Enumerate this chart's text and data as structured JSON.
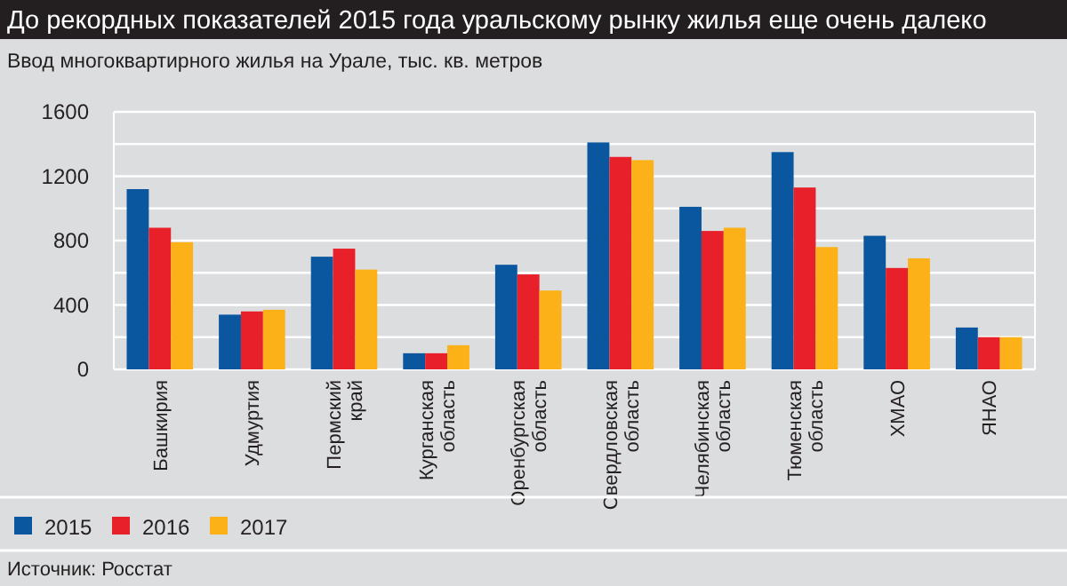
{
  "chart_data": {
    "type": "bar",
    "title": "До рекордных показателей 2015 года уральскому рынку жилья еще очень далеко",
    "subtitle": "Ввод многоквартирного жилья на Урале, тыс. кв. метров",
    "categories": [
      "Башкирия",
      "Удмуртия",
      "Пермский край",
      "Курганская область",
      "Оренбургская область",
      "Свердловская область",
      "Челябинская область",
      "Тюменская область",
      "ХМАО",
      "ЯНАО"
    ],
    "series": [
      {
        "name": "2015",
        "color": "#0a57a0",
        "values": [
          1120,
          340,
          700,
          100,
          650,
          1410,
          1010,
          1350,
          830,
          260
        ]
      },
      {
        "name": "2016",
        "color": "#e8202a",
        "values": [
          880,
          360,
          750,
          100,
          590,
          1320,
          860,
          1130,
          630,
          200
        ]
      },
      {
        "name": "2017",
        "color": "#fbb117",
        "values": [
          790,
          370,
          620,
          150,
          490,
          1300,
          880,
          760,
          690,
          200
        ]
      }
    ],
    "ylim": [
      0,
      1600
    ],
    "yticks": [
      0,
      {
        "value": 200,
        "label": null
      },
      400,
      {
        "value": 600,
        "label": null
      },
      800,
      {
        "value": 1000,
        "label": null
      },
      1200,
      {
        "value": 1400,
        "label": null
      },
      1600
    ],
    "grid": true,
    "legend": "bottom left",
    "annotations": [
      "Источник: Росстат"
    ]
  }
}
